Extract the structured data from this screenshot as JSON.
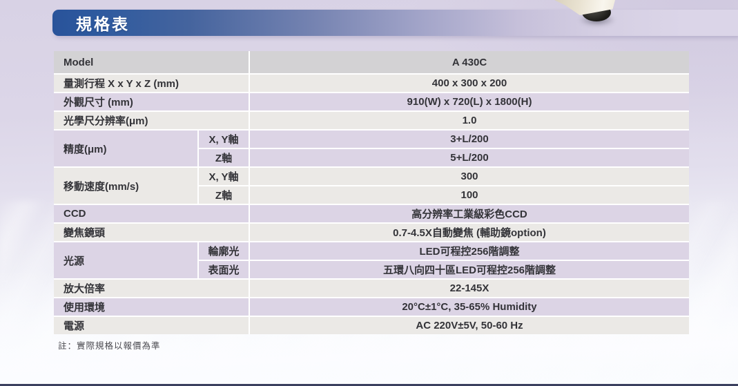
{
  "header": {
    "title": "規格表"
  },
  "table": {
    "rows": [
      {
        "label": "Model",
        "value": "A 430C",
        "tone": "gray"
      },
      {
        "label": "量測行程 X x Y x Z (mm)",
        "value": "400 x 300 x 200",
        "tone": "light"
      },
      {
        "label": "外觀尺寸 (mm)",
        "value": "910(W) x 720(L) x 1800(H)",
        "tone": "purple"
      },
      {
        "label": "光學尺分辨率(μm)",
        "value": "1.0",
        "tone": "light"
      },
      {
        "label": "精度(μm)",
        "tone": "purple",
        "subs": [
          {
            "sub": "X, Y軸",
            "value": "3+L/200"
          },
          {
            "sub": "Z軸",
            "value": "5+L/200"
          }
        ]
      },
      {
        "label": "移動速度(mm/s)",
        "tone": "light",
        "subs": [
          {
            "sub": "X, Y軸",
            "value": "300"
          },
          {
            "sub": "Z軸",
            "value": "100"
          }
        ]
      },
      {
        "label": "CCD",
        "value": "高分辨率工業級彩色CCD",
        "tone": "purple"
      },
      {
        "label": "變焦鏡頭",
        "value": "0.7-4.5X自動變焦 (輔助鏡option)",
        "tone": "light"
      },
      {
        "label": "光源",
        "tone": "purple",
        "subs": [
          {
            "sub": "輪廓光",
            "value": "LED可程控256階調整"
          },
          {
            "sub": "表面光",
            "value": "五環八向四十區LED可程控256階調整"
          }
        ]
      },
      {
        "label": "放大倍率",
        "value": "22-145X",
        "tone": "light"
      },
      {
        "label": "使用環境",
        "value": "20°C±1°C, 35-65% Humidity",
        "tone": "purple"
      },
      {
        "label": "電源",
        "value": "AC 220V±5V, 50-60 Hz",
        "tone": "light"
      }
    ]
  },
  "note": "註：實際規格以報價為準",
  "colors": {
    "title_bar_start": "#29539a",
    "title_bar_end": "#dbd5e8",
    "row_gray": "#d3d2d4",
    "row_light": "#ebe9e6",
    "row_purple": "#dcd4e5",
    "background": "#dcd6e8",
    "bottom_bar": "#3a3f5e"
  }
}
